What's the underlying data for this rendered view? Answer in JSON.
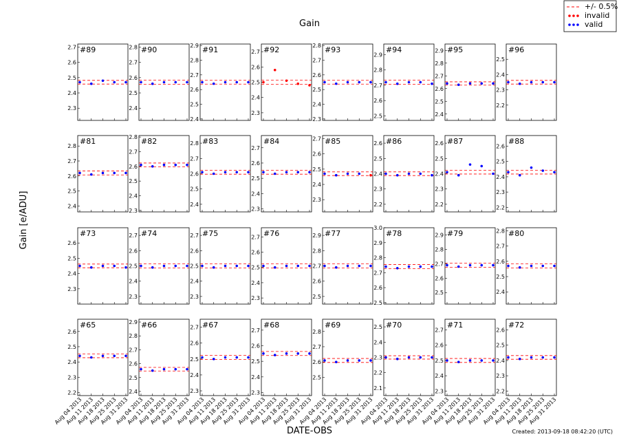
{
  "chart_data": {
    "type": "scatter",
    "title": "Gain",
    "y_label": "Gain [e/ADU]",
    "x_label": "DATE-OBS",
    "note": "Created: 2013-09-18 08:42:20 (UTC)",
    "categories": [
      "Aug 04 2013",
      "Aug 11 2013",
      "Aug 18 2013",
      "Aug 25 2013",
      "Aug 31 2013"
    ],
    "legend": [
      {
        "name": "+/- 0.5%",
        "color": "#ff0000"
      },
      {
        "name": "invalid",
        "color": "#ff0000"
      },
      {
        "name": "valid",
        "color": "#0000ff"
      }
    ],
    "panels": [
      {
        "label": "#89",
        "ylim": [
          2.22,
          2.72
        ],
        "yticks": [
          2.3,
          2.4,
          2.5,
          2.6,
          2.7
        ],
        "band": [
          2.458,
          2.482
        ],
        "valid": [
          2.47,
          2.46,
          2.48,
          2.47,
          2.47
        ]
      },
      {
        "label": "#90",
        "ylim": [
          2.32,
          2.82
        ],
        "yticks": [
          2.4,
          2.5,
          2.6,
          2.7,
          2.8
        ],
        "band": [
          2.557,
          2.583
        ],
        "valid": [
          2.57,
          2.56,
          2.57,
          2.57,
          2.57
        ]
      },
      {
        "label": "#91",
        "ylim": [
          2.39,
          2.91
        ],
        "yticks": [
          2.4,
          2.5,
          2.6,
          2.7,
          2.8,
          2.9
        ],
        "band": [
          2.637,
          2.663
        ],
        "valid": [
          2.65,
          2.64,
          2.65,
          2.65,
          2.65
        ]
      },
      {
        "label": "#92",
        "ylim": [
          2.25,
          2.75
        ],
        "yticks": [
          2.3,
          2.4,
          2.5,
          2.6,
          2.7
        ],
        "band": [
          2.487,
          2.513
        ],
        "invalid": [
          2.5,
          2.58,
          2.51,
          2.49,
          2.48
        ]
      },
      {
        "label": "#93",
        "ylim": [
          2.29,
          2.81
        ],
        "yticks": [
          2.3,
          2.4,
          2.5,
          2.6,
          2.7,
          2.8
        ],
        "band": [
          2.537,
          2.563
        ],
        "valid": [
          2.55,
          2.54,
          2.55,
          2.55,
          2.55
        ]
      },
      {
        "label": "#94",
        "ylim": [
          2.47,
          2.97
        ],
        "yticks": [
          2.5,
          2.6,
          2.7,
          2.8,
          2.9
        ],
        "band": [
          2.706,
          2.734
        ],
        "valid": [
          2.72,
          2.71,
          2.72,
          2.72,
          2.71
        ]
      },
      {
        "label": "#95",
        "ylim": [
          2.35,
          2.95
        ],
        "yticks": [
          2.4,
          2.5,
          2.6,
          2.7,
          2.8,
          2.9
        ],
        "band": [
          2.627,
          2.653
        ],
        "valid": [
          2.64,
          2.63,
          2.64,
          2.64,
          2.64
        ]
      },
      {
        "label": "#96",
        "ylim": [
          2.1,
          2.6
        ],
        "yticks": [
          2.2,
          2.3,
          2.4,
          2.5
        ],
        "band": [
          2.338,
          2.362
        ],
        "valid": [
          2.35,
          2.34,
          2.35,
          2.35,
          2.35
        ]
      },
      {
        "label": "#81",
        "ylim": [
          2.36,
          2.87
        ],
        "yticks": [
          2.4,
          2.5,
          2.6,
          2.7,
          2.8
        ],
        "band": [
          2.607,
          2.633
        ],
        "valid": [
          2.62,
          2.61,
          2.62,
          2.62,
          2.62
        ]
      },
      {
        "label": "#82",
        "ylim": [
          2.29,
          2.81
        ],
        "yticks": [
          2.3,
          2.4,
          2.5,
          2.6,
          2.7,
          2.8
        ],
        "band": [
          2.597,
          2.623
        ],
        "valid": [
          2.61,
          2.6,
          2.61,
          2.61,
          2.61
        ]
      },
      {
        "label": "#83",
        "ylim": [
          2.35,
          2.85
        ],
        "yticks": [
          2.4,
          2.5,
          2.6,
          2.7,
          2.8
        ],
        "band": [
          2.597,
          2.623
        ],
        "valid": [
          2.61,
          2.6,
          2.61,
          2.61,
          2.61
        ]
      },
      {
        "label": "#84",
        "ylim": [
          2.28,
          2.78
        ],
        "yticks": [
          2.3,
          2.4,
          2.5,
          2.6,
          2.7
        ],
        "band": [
          2.527,
          2.553
        ],
        "valid": [
          2.54,
          2.53,
          2.54,
          2.54,
          2.54
        ]
      },
      {
        "label": "#85",
        "ylim": [
          2.22,
          2.72
        ],
        "yticks": [
          2.3,
          2.4,
          2.5,
          2.6,
          2.7
        ],
        "band": [
          2.458,
          2.482
        ],
        "valid": [
          2.47,
          2.46,
          2.47,
          2.47,
          null
        ],
        "invalid": [
          null,
          null,
          null,
          null,
          2.46
        ]
      },
      {
        "label": "#86",
        "ylim": [
          2.15,
          2.65
        ],
        "yticks": [
          2.2,
          2.3,
          2.4,
          2.5,
          2.6
        ],
        "band": [
          2.388,
          2.412
        ],
        "valid": [
          2.4,
          2.39,
          2.4,
          2.4,
          2.39
        ]
      },
      {
        "label": "#87",
        "ylim": [
          2.15,
          2.65
        ],
        "yticks": [
          2.2,
          2.3,
          2.4,
          2.5,
          2.6
        ],
        "band": [
          2.398,
          2.422
        ],
        "valid": [
          2.41,
          2.39,
          2.46,
          2.45,
          2.4
        ]
      },
      {
        "label": "#88",
        "ylim": [
          2.17,
          2.67
        ],
        "yticks": [
          2.2,
          2.3,
          2.4,
          2.5,
          2.6
        ],
        "band": [
          2.418,
          2.442
        ],
        "valid": [
          2.43,
          2.41,
          2.46,
          2.44,
          2.43
        ]
      },
      {
        "label": "#73",
        "ylim": [
          2.2,
          2.7
        ],
        "yticks": [
          2.3,
          2.4,
          2.5,
          2.6
        ],
        "band": [
          2.438,
          2.462
        ],
        "valid": [
          2.45,
          2.44,
          2.45,
          2.45,
          2.44
        ]
      },
      {
        "label": "#74",
        "ylim": [
          2.25,
          2.75
        ],
        "yticks": [
          2.3,
          2.4,
          2.5,
          2.6,
          2.7
        ],
        "band": [
          2.487,
          2.513
        ],
        "valid": [
          2.5,
          2.49,
          2.5,
          2.5,
          2.5
        ]
      },
      {
        "label": "#75",
        "ylim": [
          2.25,
          2.75
        ],
        "yticks": [
          2.3,
          2.4,
          2.5,
          2.6,
          2.7
        ],
        "band": [
          2.487,
          2.513
        ],
        "valid": [
          2.5,
          2.49,
          2.5,
          2.5,
          2.5
        ]
      },
      {
        "label": "#76",
        "ylim": [
          2.26,
          2.76
        ],
        "yticks": [
          2.3,
          2.4,
          2.5,
          2.6,
          2.7
        ],
        "band": [
          2.497,
          2.523
        ],
        "valid": [
          2.51,
          2.5,
          2.51,
          2.51,
          2.51
        ]
      },
      {
        "label": "#77",
        "ylim": [
          2.45,
          2.95
        ],
        "yticks": [
          2.5,
          2.6,
          2.7,
          2.8,
          2.9
        ],
        "band": [
          2.686,
          2.714
        ],
        "valid": [
          2.7,
          2.69,
          2.7,
          2.7,
          2.7
        ]
      },
      {
        "label": "#78",
        "ylim": [
          2.49,
          3.0
        ],
        "yticks": [
          2.5,
          2.6,
          2.7,
          2.8,
          2.9,
          {
            "value": 3.0,
            "label": "3.0"
          }
        ],
        "band": [
          2.726,
          2.754
        ],
        "valid": [
          2.74,
          2.73,
          2.74,
          2.74,
          2.74
        ]
      },
      {
        "label": "#79",
        "ylim": [
          2.42,
          2.95
        ],
        "yticks": [
          2.5,
          2.6,
          2.7,
          2.8,
          2.9
        ],
        "band": [
          2.676,
          2.704
        ],
        "valid": [
          2.69,
          2.68,
          2.69,
          2.69,
          2.69
        ]
      },
      {
        "label": "#80",
        "ylim": [
          2.32,
          2.82
        ],
        "yticks": [
          2.4,
          2.5,
          2.6,
          2.7,
          2.8
        ],
        "band": [
          2.557,
          2.583
        ],
        "valid": [
          2.57,
          2.56,
          2.57,
          2.57,
          2.57
        ]
      },
      {
        "label": "#65",
        "ylim": [
          2.18,
          2.68
        ],
        "yticks": [
          2.2,
          2.3,
          2.4,
          2.5,
          2.6
        ],
        "band": [
          2.428,
          2.452
        ],
        "valid": [
          2.44,
          2.43,
          2.44,
          2.44,
          2.44
        ]
      },
      {
        "label": "#66",
        "ylim": [
          2.37,
          2.92
        ],
        "yticks": [
          2.4,
          2.5,
          2.6,
          2.7,
          2.8,
          2.9
        ],
        "band": [
          2.547,
          2.573
        ],
        "valid": [
          2.56,
          2.55,
          2.56,
          2.56,
          2.56
        ]
      },
      {
        "label": "#67",
        "ylim": [
          2.27,
          2.75
        ],
        "yticks": [
          2.3,
          2.4,
          2.5,
          2.6,
          2.7
        ],
        "band": [
          2.497,
          2.523
        ],
        "valid": [
          2.51,
          2.5,
          2.51,
          2.51,
          2.51
        ]
      },
      {
        "label": "#68",
        "ylim": [
          2.28,
          2.77
        ],
        "yticks": [
          2.3,
          2.4,
          2.5,
          2.6,
          2.7
        ],
        "band": [
          2.537,
          2.563
        ],
        "valid": [
          2.55,
          2.54,
          2.55,
          2.55,
          2.55
        ]
      },
      {
        "label": "#69",
        "ylim": [
          2.38,
          2.88
        ],
        "yticks": [
          2.5,
          2.6,
          2.7,
          2.8
        ],
        "band": [
          2.597,
          2.623
        ],
        "valid": [
          2.61,
          2.6,
          2.61,
          2.61,
          2.61
        ]
      },
      {
        "label": "#70",
        "ylim": [
          2.05,
          2.55
        ],
        "yticks": [
          2.1,
          2.2,
          2.3,
          2.4,
          2.5
        ],
        "band": [
          2.289,
          2.311
        ],
        "valid": [
          2.3,
          2.29,
          2.3,
          2.3,
          2.3
        ]
      },
      {
        "label": "#71",
        "ylim": [
          2.27,
          2.77
        ],
        "yticks": [
          2.3,
          2.4,
          2.5,
          2.6,
          2.7
        ],
        "band": [
          2.487,
          2.513
        ],
        "valid": [
          2.5,
          2.49,
          2.5,
          2.5,
          2.5
        ]
      },
      {
        "label": "#72",
        "ylim": [
          2.17,
          2.67
        ],
        "yticks": [
          2.2,
          2.3,
          2.4,
          2.5,
          2.6
        ],
        "band": [
          2.408,
          2.432
        ],
        "valid": [
          2.42,
          2.41,
          2.42,
          2.42,
          2.42
        ]
      }
    ]
  }
}
